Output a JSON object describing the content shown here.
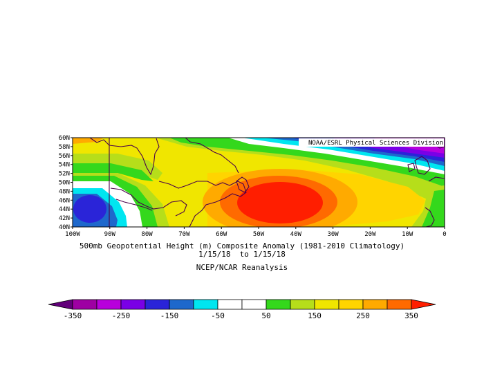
{
  "map": {
    "credit": "NOAA/ESRL Physical Sciences Division",
    "lat_labels": [
      "60N",
      "58N",
      "56N",
      "54N",
      "52N",
      "50N",
      "48N",
      "46N",
      "44N",
      "42N",
      "40N"
    ],
    "lon_labels": [
      "100W",
      "90W",
      "80W",
      "70W",
      "60W",
      "50W",
      "40W",
      "30W",
      "20W",
      "10W",
      "0"
    ],
    "colors": {
      "c_n350": "#62007a",
      "c_n300": "#9e00a3",
      "c_n250": "#b800dc",
      "c_n200": "#7a00e6",
      "c_n150": "#2a24d8",
      "c_n100": "#1e68cc",
      "c_n50": "#00e6f0",
      "c_0": "#ffffff",
      "c_50": "#34d81c",
      "c_100": "#b6de1a",
      "c_150": "#f0e600",
      "c_200": "#ffd400",
      "c_250": "#ffaa00",
      "c_300": "#ff6a00",
      "c_350": "#ff1e00"
    }
  },
  "caption": {
    "title": "500mb Geopotential Height (m) Composite Anomaly (1981-2010 Climatology)",
    "dates": "1/15/18  to 1/15/18",
    "source": "NCEP/NCAR Reanalysis"
  },
  "colorbar": {
    "colors": [
      "#62007a",
      "#9e00a3",
      "#b800dc",
      "#7a00e6",
      "#2a24d8",
      "#1e68cc",
      "#00e6f0",
      "#ffffff",
      "#ffffff",
      "#34d81c",
      "#b6de1a",
      "#f0e600",
      "#ffd400",
      "#ffaa00",
      "#ff6a00",
      "#ff1e00"
    ],
    "labels": [
      "-350",
      "-250",
      "-150",
      "-50",
      "50",
      "150",
      "250",
      "350"
    ]
  }
}
